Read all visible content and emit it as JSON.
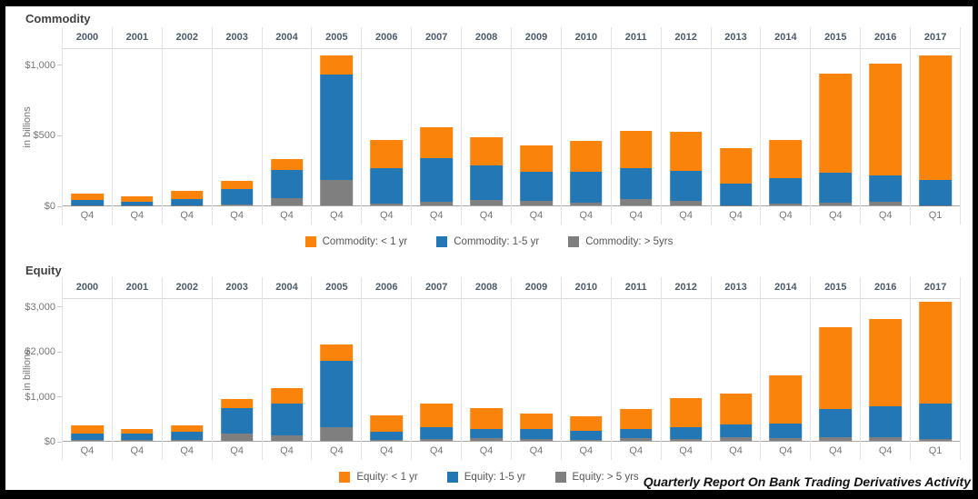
{
  "footer": {
    "text": "Quarterly Report On Bank Trading Derivatives Activity"
  },
  "colors": {
    "orange": "#fa830c",
    "blue": "#2277b4",
    "gray": "#7f7f7f"
  },
  "chart_data": [
    {
      "type": "bar",
      "stacked": true,
      "title": "Commodity",
      "ylabel": "in billions",
      "unit": "USD billions",
      "categories": [
        "2000",
        "2001",
        "2002",
        "2003",
        "2004",
        "2005",
        "2006",
        "2007",
        "2008",
        "2009",
        "2010",
        "2011",
        "2012",
        "2013",
        "2014",
        "2015",
        "2016",
        "2017"
      ],
      "quarters": [
        "Q4",
        "Q4",
        "Q4",
        "Q4",
        "Q4",
        "Q4",
        "Q4",
        "Q4",
        "Q4",
        "Q4",
        "Q4",
        "Q4",
        "Q4",
        "Q4",
        "Q4",
        "Q4",
        "Q4",
        "Q1"
      ],
      "ylim": [
        0,
        1120
      ],
      "grid": "vertical-only",
      "legend_position": "bottom-center",
      "yticks": [
        {
          "value": 0,
          "label": "$0"
        },
        {
          "value": 500,
          "label": "$500"
        },
        {
          "value": 1000,
          "label": "$1,000"
        }
      ],
      "series": [
        {
          "name": "Commodity: < 1 yr",
          "color": "#fa830c",
          "values": [
            45,
            38,
            60,
            58,
            75,
            135,
            200,
            220,
            200,
            185,
            220,
            265,
            275,
            250,
            275,
            705,
            790,
            880
          ]
        },
        {
          "name": "Commodity: 1-5 yr",
          "color": "#2277b4",
          "values": [
            36,
            25,
            42,
            112,
            200,
            745,
            255,
            310,
            245,
            210,
            220,
            220,
            215,
            155,
            180,
            210,
            190,
            180
          ]
        },
        {
          "name": "Commodity: > 5yrs",
          "color": "#7f7f7f",
          "values": [
            3,
            3,
            3,
            4,
            50,
            180,
            10,
            25,
            40,
            30,
            20,
            45,
            30,
            2,
            10,
            20,
            25,
            2
          ]
        }
      ]
    },
    {
      "type": "bar",
      "stacked": true,
      "title": "Equity",
      "ylabel": "in billions",
      "unit": "USD billions",
      "categories": [
        "2000",
        "2001",
        "2002",
        "2003",
        "2004",
        "2005",
        "2006",
        "2007",
        "2008",
        "2009",
        "2010",
        "2011",
        "2012",
        "2013",
        "2014",
        "2015",
        "2016",
        "2017"
      ],
      "quarters": [
        "Q4",
        "Q4",
        "Q4",
        "Q4",
        "Q4",
        "Q4",
        "Q4",
        "Q4",
        "Q4",
        "Q4",
        "Q4",
        "Q4",
        "Q4",
        "Q4",
        "Q4",
        "Q4",
        "Q4",
        "Q1"
      ],
      "ylim": [
        0,
        3200
      ],
      "grid": "vertical-only",
      "legend_position": "bottom-center",
      "yticks": [
        {
          "value": 0,
          "label": "$0"
        },
        {
          "value": 1000,
          "label": "$1,000"
        },
        {
          "value": 2000,
          "label": "$2,000"
        },
        {
          "value": 3000,
          "label": "$3,000"
        }
      ],
      "series": [
        {
          "name": "Equity: < 1 yr",
          "color": "#fa830c",
          "values": [
            195,
            105,
            145,
            205,
            330,
            370,
            365,
            520,
            460,
            350,
            325,
            455,
            655,
            690,
            1075,
            1830,
            1945,
            2270
          ]
        },
        {
          "name": "Equity: 1-5 yr",
          "color": "#2277b4",
          "values": [
            130,
            145,
            175,
            570,
            720,
            1470,
            180,
            270,
            210,
            220,
            185,
            185,
            250,
            285,
            335,
            620,
            675,
            800
          ]
        },
        {
          "name": "Equity: > 5 yrs",
          "color": "#7f7f7f",
          "values": [
            25,
            15,
            20,
            165,
            120,
            310,
            30,
            45,
            60,
            40,
            30,
            70,
            50,
            80,
            55,
            90,
            90,
            35
          ]
        }
      ]
    }
  ]
}
